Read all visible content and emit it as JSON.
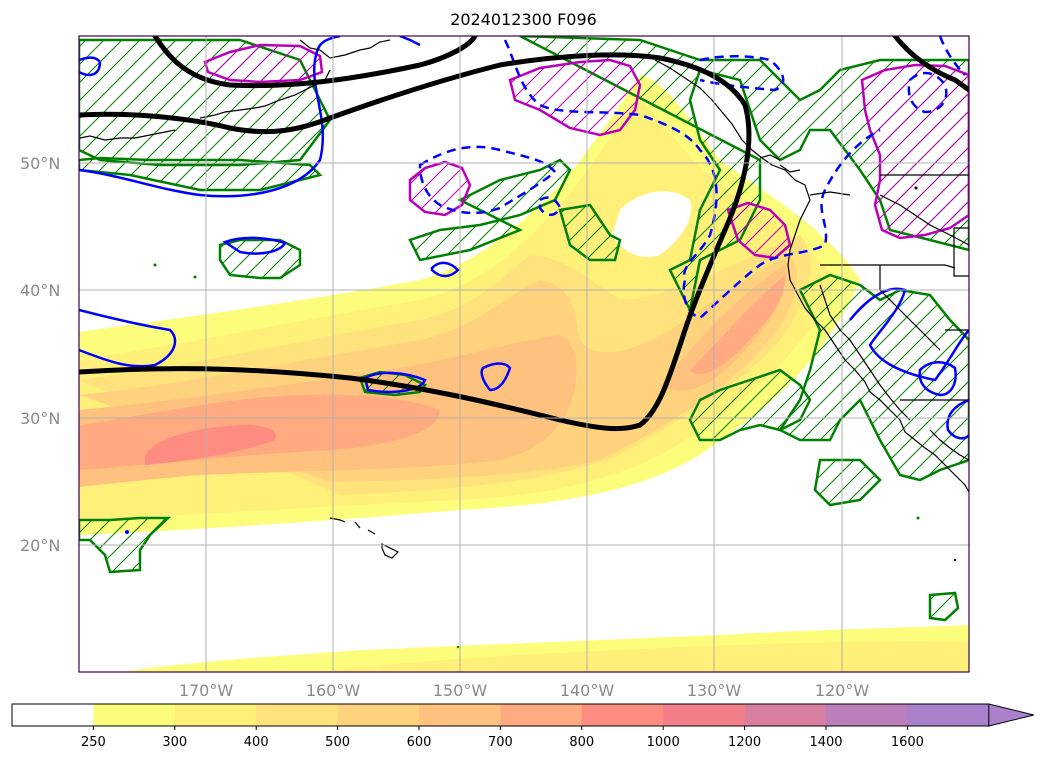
{
  "title": "2024012300 F096",
  "map": {
    "lon_labels": [
      "170°W",
      "160°W",
      "150°W",
      "140°W",
      "130°W",
      "120°W"
    ],
    "lat_labels": [
      "50°N",
      "40°N",
      "30°N",
      "20°N"
    ],
    "lon_range": [
      -180,
      -110
    ],
    "lat_range": [
      10,
      60
    ]
  },
  "colorbar": {
    "ticks": [
      "250",
      "300",
      "400",
      "500",
      "600",
      "700",
      "800",
      "1000",
      "1200",
      "1400",
      "1600"
    ],
    "colors": [
      "#ffffff",
      "#fdfd7c",
      "#fff07a",
      "#ffe27c",
      "#ffd27e",
      "#ffc27e",
      "#ffaa80",
      "#ff8c80",
      "#f27f8a",
      "#d87fa0",
      "#bb80bc",
      "#a880cc"
    ],
    "extend": "max"
  },
  "styles": {
    "jet_line": "#000000",
    "blue_contour": "#0000ff",
    "green_hatch": "#008000",
    "magenta_hatch": "#bb00bb",
    "grid": "#b0b0b0"
  }
}
